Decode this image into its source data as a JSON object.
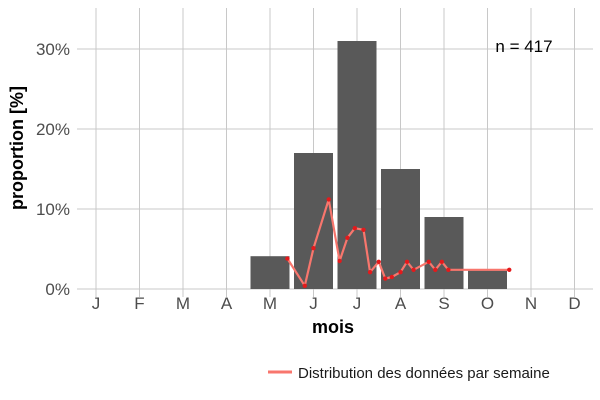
{
  "chart_data": {
    "type": "bar",
    "xlabel": "mois",
    "ylabel": "proportion [%]",
    "categories": [
      "J",
      "F",
      "M",
      "A",
      "M",
      "J",
      "J",
      "A",
      "S",
      "O",
      "N",
      "D"
    ],
    "values": [
      0,
      0,
      0,
      0,
      4.1,
      17,
      31,
      15,
      9,
      2.3,
      0,
      0
    ],
    "ylim": [
      0,
      35
    ],
    "yticks": [
      0,
      10,
      20,
      30
    ],
    "ytick_labels": [
      "0%",
      "10%",
      "20%",
      "30%"
    ],
    "grid": true,
    "annotation": "n = 417",
    "bar_color": "#595959",
    "series": [
      {
        "name": "Distribution des données par semaine",
        "type": "line",
        "color": "#f8766d",
        "point_color": "#e41a1c",
        "x": [
          4.4,
          4.8,
          5.0,
          5.35,
          5.6,
          5.78,
          5.95,
          6.15,
          6.3,
          6.5,
          6.65,
          6.8,
          7.0,
          7.15,
          7.3,
          7.65,
          7.8,
          7.95,
          8.1,
          9.5
        ],
        "y": [
          3.8,
          0.4,
          5.1,
          11.2,
          3.5,
          6.4,
          7.6,
          7.4,
          2.1,
          3.4,
          1.3,
          1.5,
          2.1,
          3.4,
          2.4,
          3.4,
          2.4,
          3.4,
          2.4,
          2.4
        ]
      }
    ],
    "legend_position": "bottom-right"
  }
}
